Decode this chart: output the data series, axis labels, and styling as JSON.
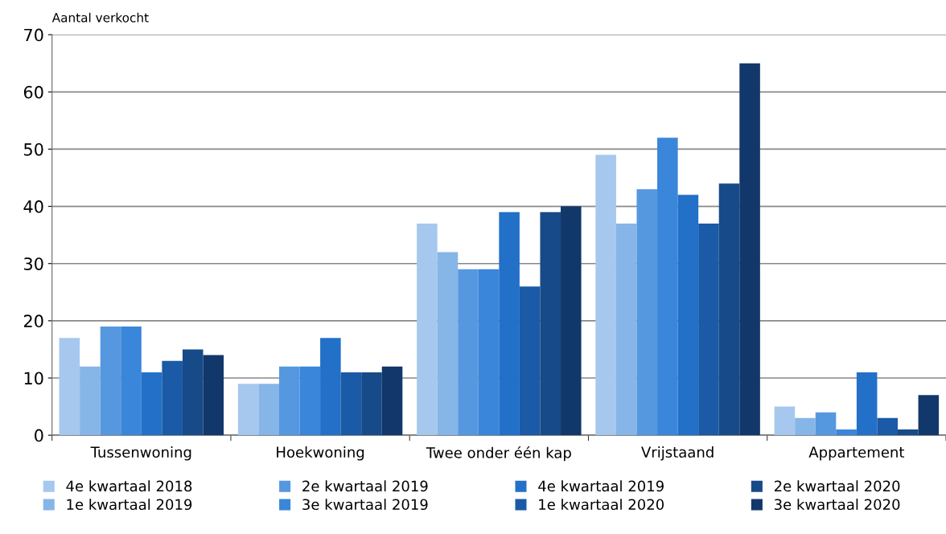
{
  "chart_data": {
    "type": "bar",
    "ylabel": "Aantal verkocht",
    "categories": [
      "Tussenwoning",
      "Hoekwoning",
      "Twee onder één kap",
      "Vrijstaand",
      "Appartement"
    ],
    "series": [
      {
        "name": "4e kwartaal 2018",
        "color": "#a6c8ee",
        "values": [
          17,
          9,
          37,
          49,
          5
        ]
      },
      {
        "name": "1e kwartaal 2019",
        "color": "#86b5e8",
        "values": [
          12,
          9,
          32,
          37,
          3
        ]
      },
      {
        "name": "2e kwartaal 2019",
        "color": "#5698e0",
        "values": [
          19,
          12,
          29,
          43,
          4
        ]
      },
      {
        "name": "3e kwartaal 2019",
        "color": "#3a86da",
        "values": [
          19,
          12,
          29,
          52,
          1
        ]
      },
      {
        "name": "4e kwartaal 2019",
        "color": "#2270c8",
        "values": [
          11,
          17,
          39,
          42,
          11
        ]
      },
      {
        "name": "1e kwartaal 2020",
        "color": "#1a5aa6",
        "values": [
          13,
          11,
          26,
          37,
          3
        ]
      },
      {
        "name": "2e kwartaal 2020",
        "color": "#174a88",
        "values": [
          15,
          11,
          39,
          44,
          1
        ]
      },
      {
        "name": "3e kwartaal 2020",
        "color": "#12376a",
        "values": [
          14,
          12,
          40,
          65,
          7
        ]
      }
    ],
    "ylim": [
      0,
      70
    ],
    "yticks": [
      0,
      10,
      20,
      30,
      40,
      50,
      60,
      70
    ],
    "grid": "y",
    "legend": "bottom"
  }
}
